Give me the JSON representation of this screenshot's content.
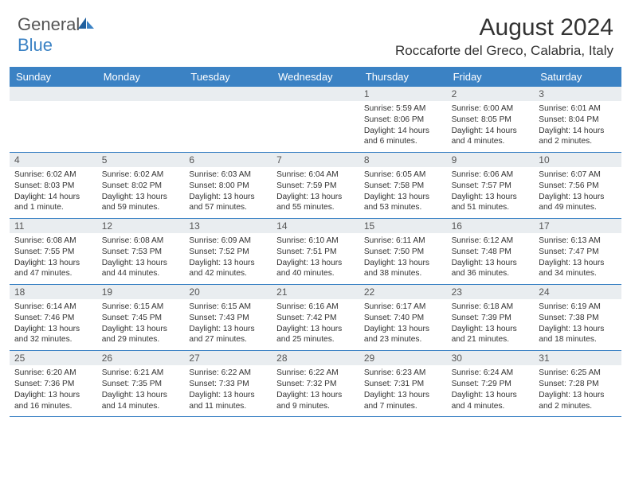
{
  "brand": {
    "name_a": "General",
    "name_b": "Blue"
  },
  "title": "August 2024",
  "location": "Roccaforte del Greco, Calabria, Italy",
  "colors": {
    "header_bg": "#3b82c4",
    "header_text": "#ffffff",
    "daynum_bg": "#e9edf0",
    "rule": "#3b82c4",
    "body_text": "#333333",
    "logo_gray": "#555555",
    "logo_blue": "#3b82c4",
    "page_bg": "#ffffff"
  },
  "typography": {
    "title_size_pt": 23,
    "location_size_pt": 13,
    "dayhead_size_pt": 10,
    "daynum_size_pt": 9,
    "cell_size_pt": 8
  },
  "day_names": [
    "Sunday",
    "Monday",
    "Tuesday",
    "Wednesday",
    "Thursday",
    "Friday",
    "Saturday"
  ],
  "weeks": [
    {
      "nums": [
        "",
        "",
        "",
        "",
        "1",
        "2",
        "3"
      ],
      "cells": [
        {},
        {},
        {},
        {},
        {
          "sr": "Sunrise: 5:59 AM",
          "ss": "Sunset: 8:06 PM",
          "dl": "Daylight: 14 hours and 6 minutes."
        },
        {
          "sr": "Sunrise: 6:00 AM",
          "ss": "Sunset: 8:05 PM",
          "dl": "Daylight: 14 hours and 4 minutes."
        },
        {
          "sr": "Sunrise: 6:01 AM",
          "ss": "Sunset: 8:04 PM",
          "dl": "Daylight: 14 hours and 2 minutes."
        }
      ]
    },
    {
      "nums": [
        "4",
        "5",
        "6",
        "7",
        "8",
        "9",
        "10"
      ],
      "cells": [
        {
          "sr": "Sunrise: 6:02 AM",
          "ss": "Sunset: 8:03 PM",
          "dl": "Daylight: 14 hours and 1 minute."
        },
        {
          "sr": "Sunrise: 6:02 AM",
          "ss": "Sunset: 8:02 PM",
          "dl": "Daylight: 13 hours and 59 minutes."
        },
        {
          "sr": "Sunrise: 6:03 AM",
          "ss": "Sunset: 8:00 PM",
          "dl": "Daylight: 13 hours and 57 minutes."
        },
        {
          "sr": "Sunrise: 6:04 AM",
          "ss": "Sunset: 7:59 PM",
          "dl": "Daylight: 13 hours and 55 minutes."
        },
        {
          "sr": "Sunrise: 6:05 AM",
          "ss": "Sunset: 7:58 PM",
          "dl": "Daylight: 13 hours and 53 minutes."
        },
        {
          "sr": "Sunrise: 6:06 AM",
          "ss": "Sunset: 7:57 PM",
          "dl": "Daylight: 13 hours and 51 minutes."
        },
        {
          "sr": "Sunrise: 6:07 AM",
          "ss": "Sunset: 7:56 PM",
          "dl": "Daylight: 13 hours and 49 minutes."
        }
      ]
    },
    {
      "nums": [
        "11",
        "12",
        "13",
        "14",
        "15",
        "16",
        "17"
      ],
      "cells": [
        {
          "sr": "Sunrise: 6:08 AM",
          "ss": "Sunset: 7:55 PM",
          "dl": "Daylight: 13 hours and 47 minutes."
        },
        {
          "sr": "Sunrise: 6:08 AM",
          "ss": "Sunset: 7:53 PM",
          "dl": "Daylight: 13 hours and 44 minutes."
        },
        {
          "sr": "Sunrise: 6:09 AM",
          "ss": "Sunset: 7:52 PM",
          "dl": "Daylight: 13 hours and 42 minutes."
        },
        {
          "sr": "Sunrise: 6:10 AM",
          "ss": "Sunset: 7:51 PM",
          "dl": "Daylight: 13 hours and 40 minutes."
        },
        {
          "sr": "Sunrise: 6:11 AM",
          "ss": "Sunset: 7:50 PM",
          "dl": "Daylight: 13 hours and 38 minutes."
        },
        {
          "sr": "Sunrise: 6:12 AM",
          "ss": "Sunset: 7:48 PM",
          "dl": "Daylight: 13 hours and 36 minutes."
        },
        {
          "sr": "Sunrise: 6:13 AM",
          "ss": "Sunset: 7:47 PM",
          "dl": "Daylight: 13 hours and 34 minutes."
        }
      ]
    },
    {
      "nums": [
        "18",
        "19",
        "20",
        "21",
        "22",
        "23",
        "24"
      ],
      "cells": [
        {
          "sr": "Sunrise: 6:14 AM",
          "ss": "Sunset: 7:46 PM",
          "dl": "Daylight: 13 hours and 32 minutes."
        },
        {
          "sr": "Sunrise: 6:15 AM",
          "ss": "Sunset: 7:45 PM",
          "dl": "Daylight: 13 hours and 29 minutes."
        },
        {
          "sr": "Sunrise: 6:15 AM",
          "ss": "Sunset: 7:43 PM",
          "dl": "Daylight: 13 hours and 27 minutes."
        },
        {
          "sr": "Sunrise: 6:16 AM",
          "ss": "Sunset: 7:42 PM",
          "dl": "Daylight: 13 hours and 25 minutes."
        },
        {
          "sr": "Sunrise: 6:17 AM",
          "ss": "Sunset: 7:40 PM",
          "dl": "Daylight: 13 hours and 23 minutes."
        },
        {
          "sr": "Sunrise: 6:18 AM",
          "ss": "Sunset: 7:39 PM",
          "dl": "Daylight: 13 hours and 21 minutes."
        },
        {
          "sr": "Sunrise: 6:19 AM",
          "ss": "Sunset: 7:38 PM",
          "dl": "Daylight: 13 hours and 18 minutes."
        }
      ]
    },
    {
      "nums": [
        "25",
        "26",
        "27",
        "28",
        "29",
        "30",
        "31"
      ],
      "cells": [
        {
          "sr": "Sunrise: 6:20 AM",
          "ss": "Sunset: 7:36 PM",
          "dl": "Daylight: 13 hours and 16 minutes."
        },
        {
          "sr": "Sunrise: 6:21 AM",
          "ss": "Sunset: 7:35 PM",
          "dl": "Daylight: 13 hours and 14 minutes."
        },
        {
          "sr": "Sunrise: 6:22 AM",
          "ss": "Sunset: 7:33 PM",
          "dl": "Daylight: 13 hours and 11 minutes."
        },
        {
          "sr": "Sunrise: 6:22 AM",
          "ss": "Sunset: 7:32 PM",
          "dl": "Daylight: 13 hours and 9 minutes."
        },
        {
          "sr": "Sunrise: 6:23 AM",
          "ss": "Sunset: 7:31 PM",
          "dl": "Daylight: 13 hours and 7 minutes."
        },
        {
          "sr": "Sunrise: 6:24 AM",
          "ss": "Sunset: 7:29 PM",
          "dl": "Daylight: 13 hours and 4 minutes."
        },
        {
          "sr": "Sunrise: 6:25 AM",
          "ss": "Sunset: 7:28 PM",
          "dl": "Daylight: 13 hours and 2 minutes."
        }
      ]
    }
  ]
}
